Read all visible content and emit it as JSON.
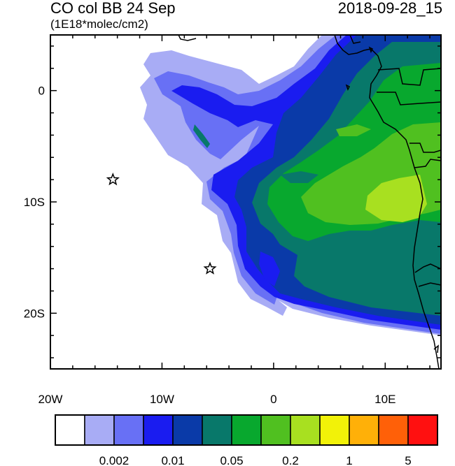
{
  "header": {
    "title": "CO col BB 24 Sep",
    "units": "(1E18*molec/cm2)",
    "datetime": "2018-09-28_15"
  },
  "map": {
    "lon_range": [
      -20,
      15
    ],
    "lat_range": [
      -25,
      5
    ],
    "x_ticks": [
      {
        "value": -20,
        "label": "20W"
      },
      {
        "value": -10,
        "label": "10W"
      },
      {
        "value": 0,
        "label": "0"
      },
      {
        "value": 10,
        "label": "10E"
      }
    ],
    "y_ticks": [
      {
        "value": 0,
        "label": "0"
      },
      {
        "value": -10,
        "label": "10S"
      },
      {
        "value": -20,
        "label": "20S"
      }
    ],
    "markers": [
      {
        "type": "star",
        "lon": -14.4,
        "lat": -8.0
      },
      {
        "type": "star",
        "lon": -5.7,
        "lat": -16.0
      }
    ]
  },
  "colorbar": {
    "colors": [
      "#ffffff",
      "#a8acf5",
      "#6870f5",
      "#1a1cf0",
      "#0a3aa8",
      "#08786a",
      "#08a82e",
      "#50c020",
      "#a8e020",
      "#f2f208",
      "#ffb008",
      "#ff6008",
      "#ff1010"
    ],
    "labels": [
      {
        "after_box": 2,
        "text": "0.002"
      },
      {
        "after_box": 4,
        "text": "0.01"
      },
      {
        "after_box": 6,
        "text": "0.05"
      },
      {
        "after_box": 8,
        "text": "0.2"
      },
      {
        "after_box": 10,
        "text": "1"
      },
      {
        "after_box": 12,
        "text": "5"
      }
    ]
  }
}
